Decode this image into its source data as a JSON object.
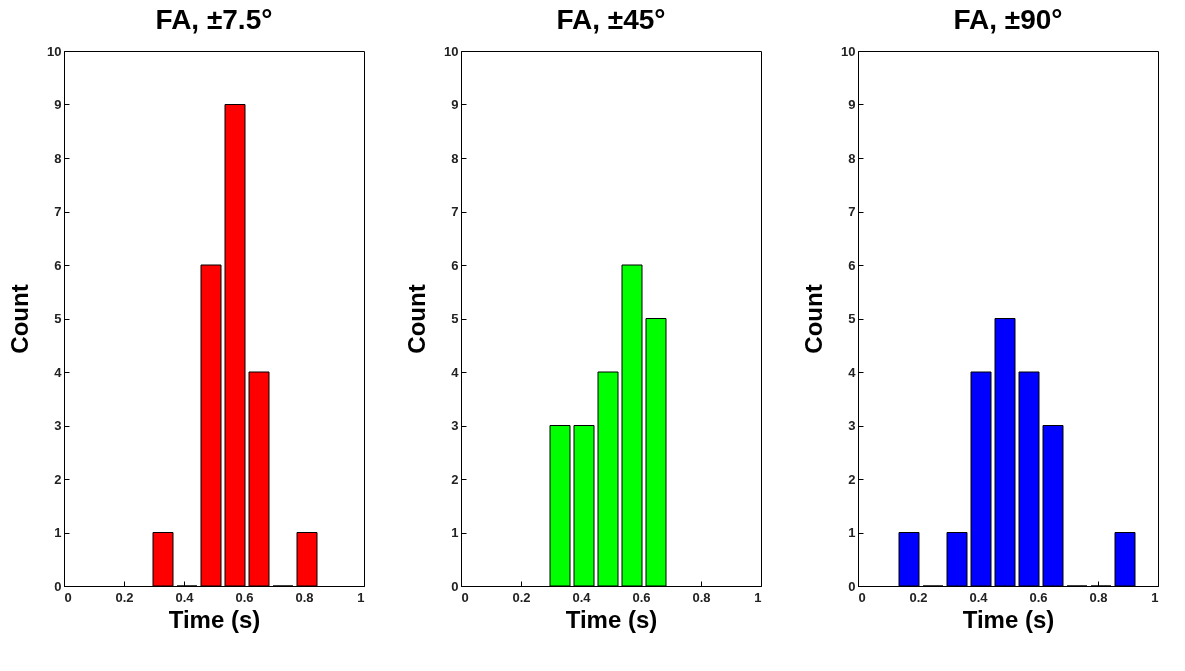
{
  "chart_data": [
    {
      "type": "histogram",
      "title": "FA, ±7.5°",
      "xlabel": "Time (s)",
      "ylabel": "Count",
      "color": "#ff0000",
      "bins": [
        0.29,
        0.37,
        0.45,
        0.53,
        0.61,
        0.69,
        0.77,
        0.85
      ],
      "values": [
        1,
        0,
        6,
        9,
        4,
        0,
        1
      ],
      "xlim": [
        0,
        1
      ],
      "ylim": [
        0,
        10
      ],
      "xticks": [
        0,
        0.2,
        0.4,
        0.6,
        0.8,
        1
      ],
      "yticks": [
        0,
        1,
        2,
        3,
        4,
        5,
        6,
        7,
        8,
        9,
        10
      ]
    },
    {
      "type": "histogram",
      "title": "FA, ±45°",
      "xlabel": "Time (s)",
      "ylabel": "Count",
      "color": "#00ff00",
      "bins": [
        0.29,
        0.37,
        0.45,
        0.53,
        0.61,
        0.69
      ],
      "values": [
        3,
        3,
        4,
        6,
        5
      ],
      "xlim": [
        0,
        1
      ],
      "ylim": [
        0,
        10
      ],
      "xticks": [
        0,
        0.2,
        0.4,
        0.6,
        0.8,
        1
      ],
      "yticks": [
        0,
        1,
        2,
        3,
        4,
        5,
        6,
        7,
        8,
        9,
        10
      ]
    },
    {
      "type": "histogram",
      "title": "FA, ±90°",
      "xlabel": "Time (s)",
      "ylabel": "Count",
      "color": "#0000ff",
      "bins": [
        0.13,
        0.21,
        0.29,
        0.37,
        0.45,
        0.53,
        0.61,
        0.69,
        0.77,
        0.85,
        0.93
      ],
      "values": [
        1,
        0,
        1,
        4,
        5,
        4,
        3,
        0,
        0,
        1
      ],
      "xlim": [
        0,
        1
      ],
      "ylim": [
        0,
        10
      ],
      "xticks": [
        0,
        0.2,
        0.4,
        0.6,
        0.8,
        1
      ],
      "yticks": [
        0,
        1,
        2,
        3,
        4,
        5,
        6,
        7,
        8,
        9,
        10
      ]
    }
  ]
}
